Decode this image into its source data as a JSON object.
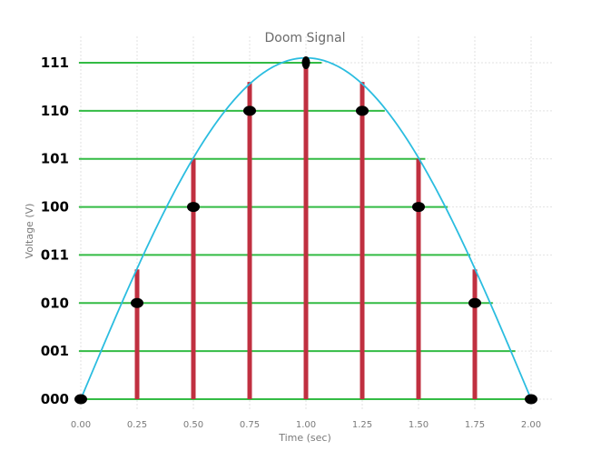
{
  "chart_data": {
    "type": "line",
    "title": "Doom Signal",
    "xlabel": "Time (sec)",
    "ylabel": "Voltage (V)",
    "xlim": [
      0,
      2
    ],
    "ylim": [
      0,
      7
    ],
    "grid": true,
    "x_ticks": [
      "0.00",
      "0.25",
      "0.50",
      "0.75",
      "1.00",
      "1.25",
      "1.50",
      "1.75",
      "2.00"
    ],
    "quantization_levels": [
      "000",
      "001",
      "010",
      "011",
      "100",
      "101",
      "110",
      "111"
    ],
    "level_lines": [
      {
        "level": 0,
        "x": [
          0.0,
          2.0
        ]
      },
      {
        "level": 1,
        "x": [
          0.0,
          1.93
        ]
      },
      {
        "level": 2,
        "x": [
          0.0,
          1.83
        ]
      },
      {
        "level": 3,
        "x": [
          0.0,
          1.73
        ]
      },
      {
        "level": 4,
        "x": [
          0.0,
          1.63
        ]
      },
      {
        "level": 5,
        "x": [
          0.0,
          1.53
        ]
      },
      {
        "level": 6,
        "x": [
          0.0,
          1.35
        ]
      },
      {
        "level": 7,
        "x": [
          0.0,
          1.07
        ]
      }
    ],
    "signal": {
      "type": "sine",
      "period": 4,
      "amplitude": 7.1,
      "x_range": [
        0,
        2
      ]
    },
    "samples": {
      "x": [
        0.0,
        0.25,
        0.5,
        0.75,
        1.0,
        1.25,
        1.5,
        1.75,
        2.0
      ],
      "bar_height": [
        0,
        2.7,
        5.0,
        6.6,
        7.0,
        6.6,
        5.0,
        2.7,
        0
      ],
      "quantized": [
        0,
        2,
        4,
        6,
        7,
        6,
        4,
        2,
        0
      ]
    },
    "colors": {
      "signal": "#2bbde0",
      "level_lines": "#33bb44",
      "sample_bars": "#c03040",
      "sample_points": "#000000"
    }
  }
}
